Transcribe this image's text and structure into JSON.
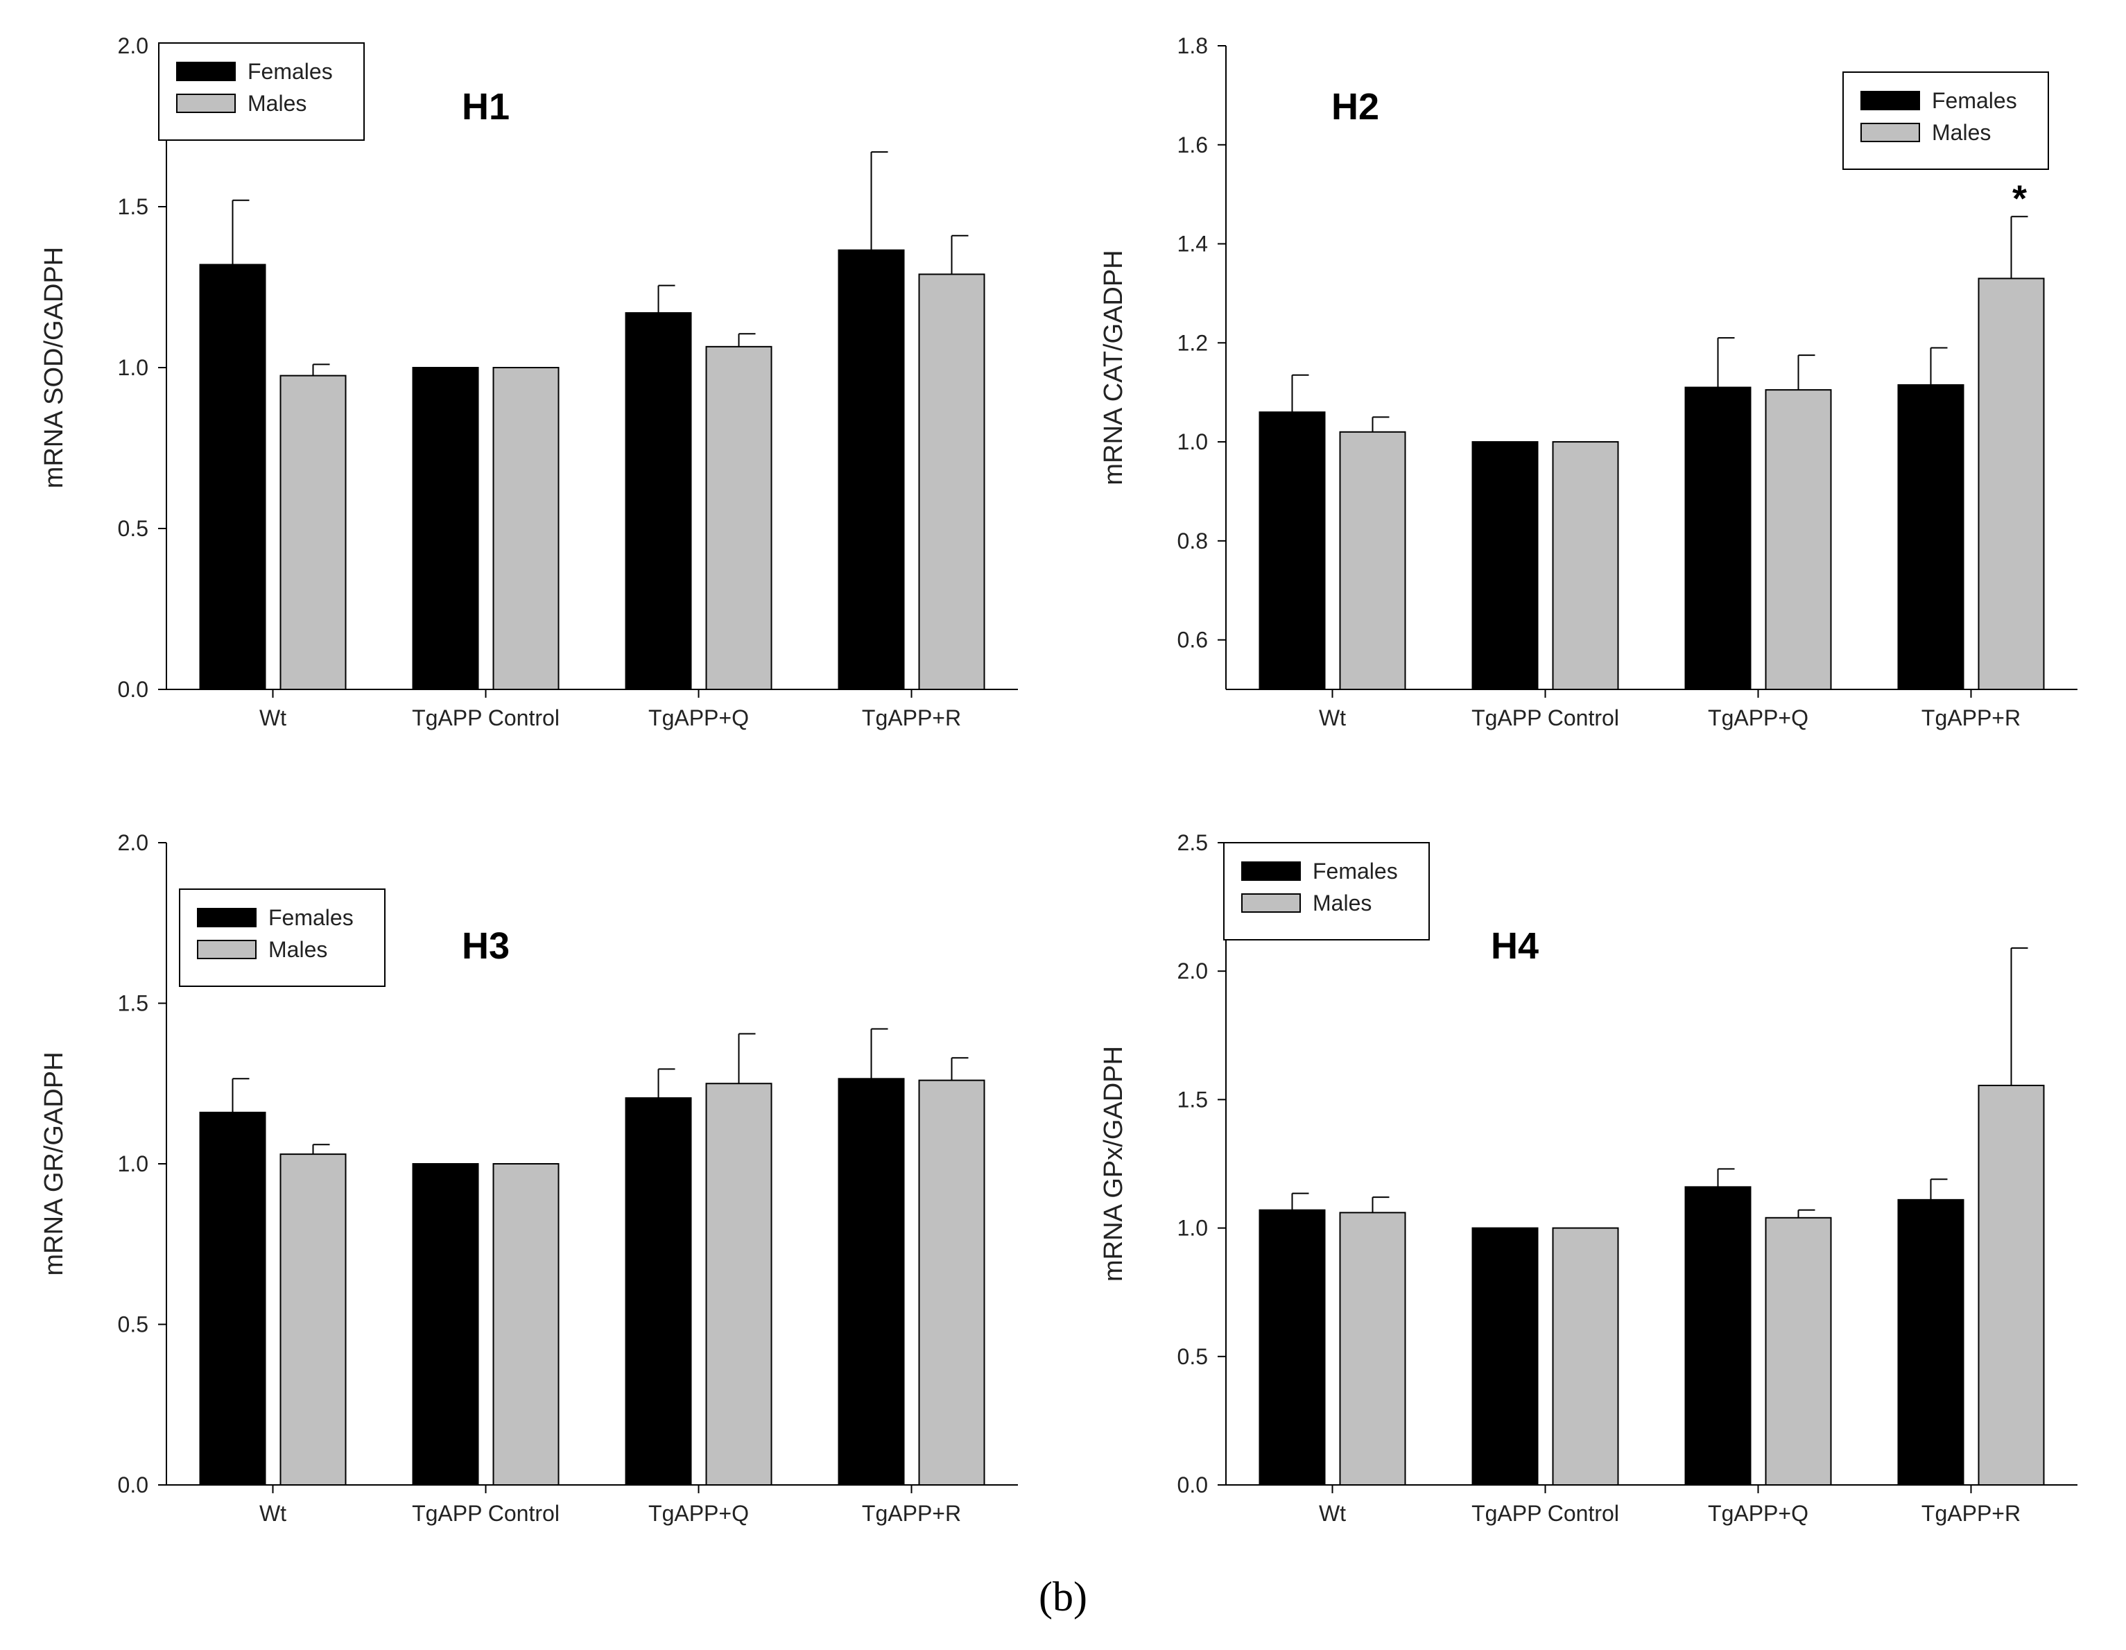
{
  "figure": {
    "caption": "(b)",
    "colors": {
      "females": "#000000",
      "males": "#c0c0c0",
      "axis": "#000000",
      "background": "#ffffff"
    }
  },
  "chart_data": [
    {
      "id": "H1",
      "type": "bar",
      "title": "H1",
      "ylabel": "mRNA SOD/GADPH",
      "xlabel": "",
      "categories": [
        "Wt",
        "TgAPP Control",
        "TgAPP+Q",
        "TgAPP+R"
      ],
      "ylim": [
        0,
        2.0
      ],
      "yticks": [
        0,
        0.5,
        1.0,
        1.5,
        2.0
      ],
      "ytick_labels": [
        "0.0",
        "0.5",
        "1.0",
        "1.5",
        "2.0"
      ],
      "legend_position": "top-left",
      "series": [
        {
          "name": "Females",
          "color": "#000000",
          "values": [
            1.32,
            1.0,
            1.17,
            1.365
          ],
          "errors": [
            0.2,
            0,
            0.085,
            0.305
          ]
        },
        {
          "name": "Males",
          "color": "#c0c0c0",
          "values": [
            0.975,
            1.0,
            1.065,
            1.29
          ],
          "errors": [
            0.035,
            0,
            0.04,
            0.12
          ]
        }
      ],
      "annotations": []
    },
    {
      "id": "H2",
      "type": "bar",
      "title": "H2",
      "ylabel": "mRNA CAT/GADPH",
      "xlabel": "",
      "categories": [
        "Wt",
        "TgAPP Control",
        "TgAPP+Q",
        "TgAPP+R"
      ],
      "ylim": [
        0.5,
        1.8
      ],
      "yticks": [
        0.6,
        0.8,
        1.0,
        1.2,
        1.4,
        1.6,
        1.8
      ],
      "ytick_labels": [
        "0.6",
        "0.8",
        "1.0",
        "1.2",
        "1.4",
        "1.6",
        "1.8"
      ],
      "legend_position": "top-right",
      "series": [
        {
          "name": "Females",
          "color": "#000000",
          "values": [
            1.06,
            1.0,
            1.11,
            1.115
          ],
          "errors": [
            0.075,
            0,
            0.1,
            0.075
          ]
        },
        {
          "name": "Males",
          "color": "#c0c0c0",
          "values": [
            1.02,
            1.0,
            1.105,
            1.33
          ],
          "errors": [
            0.03,
            0,
            0.07,
            0.125
          ]
        }
      ],
      "annotations": [
        {
          "text": "*",
          "series": "Males",
          "category": "TgAPP+R"
        }
      ]
    },
    {
      "id": "H3",
      "type": "bar",
      "title": "H3",
      "ylabel": "mRNA GR/GADPH",
      "xlabel": "",
      "categories": [
        "Wt",
        "TgAPP Control",
        "TgAPP+Q",
        "TgAPP+R"
      ],
      "ylim": [
        0,
        2.0
      ],
      "yticks": [
        0,
        0.5,
        1.0,
        1.5,
        2.0
      ],
      "ytick_labels": [
        "0.0",
        "0.5",
        "1.0",
        "1.5",
        "2.0"
      ],
      "legend_position": "top-left",
      "series": [
        {
          "name": "Females",
          "color": "#000000",
          "values": [
            1.16,
            1.0,
            1.205,
            1.265
          ],
          "errors": [
            0.105,
            0,
            0.09,
            0.155
          ]
        },
        {
          "name": "Males",
          "color": "#c0c0c0",
          "values": [
            1.03,
            1.0,
            1.25,
            1.26
          ],
          "errors": [
            0.03,
            0,
            0.155,
            0.07
          ]
        }
      ],
      "annotations": []
    },
    {
      "id": "H4",
      "type": "bar",
      "title": "H4",
      "ylabel": "mRNA GPx/GADPH",
      "xlabel": "",
      "categories": [
        "Wt",
        "TgAPP Control",
        "TgAPP+Q",
        "TgAPP+R"
      ],
      "ylim": [
        0,
        2.5
      ],
      "yticks": [
        0,
        0.5,
        1.0,
        1.5,
        2.0,
        2.5
      ],
      "ytick_labels": [
        "0.0",
        "0.5",
        "1.0",
        "1.5",
        "2.0",
        "2.5"
      ],
      "legend_position": "top-left",
      "series": [
        {
          "name": "Females",
          "color": "#000000",
          "values": [
            1.07,
            1.0,
            1.16,
            1.11
          ],
          "errors": [
            0.065,
            0,
            0.07,
            0.08
          ]
        },
        {
          "name": "Males",
          "color": "#c0c0c0",
          "values": [
            1.06,
            1.0,
            1.04,
            1.555
          ],
          "errors": [
            0.06,
            0,
            0.03,
            0.535
          ]
        }
      ],
      "annotations": []
    }
  ]
}
